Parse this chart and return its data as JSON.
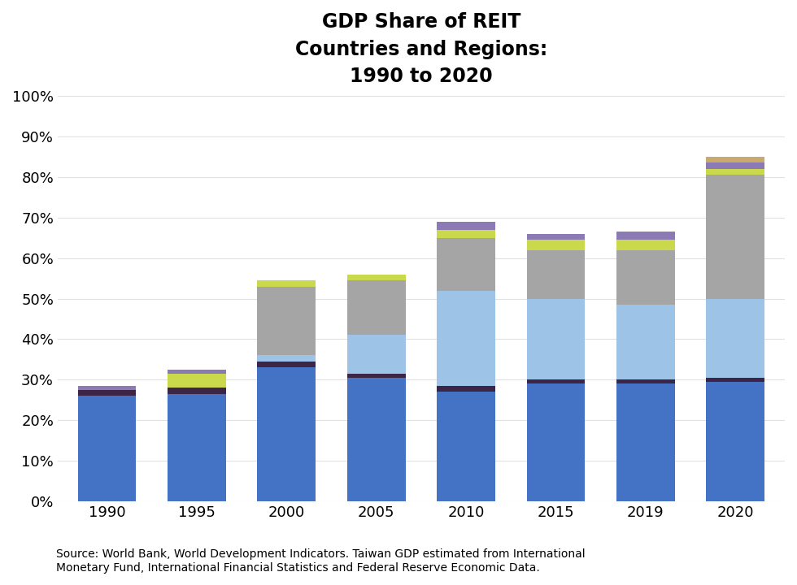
{
  "years": [
    "1990",
    "1995",
    "2000",
    "2005",
    "2010",
    "2015",
    "2019",
    "2020"
  ],
  "title": "GDP Share of REIT\nCountries and Regions:\n1990 to 2020",
  "yticks": [
    0,
    10,
    20,
    30,
    40,
    50,
    60,
    70,
    80,
    90,
    100
  ],
  "ytick_labels": [
    "0%",
    "10%",
    "20%",
    "30%",
    "40%",
    "50%",
    "60%",
    "70%",
    "80%",
    "90%",
    "100%"
  ],
  "source_text": "Source: World Bank, World Development Indicators. Taiwan GDP estimated from International\nMonetary Fund, International Financial Statistics and Federal Reserve Economic Data.",
  "segments": {
    "dark_blue": [
      26.0,
      26.5,
      33.0,
      30.5,
      27.0,
      29.0,
      29.0,
      29.5
    ],
    "dark_maroon": [
      1.5,
      1.5,
      1.5,
      1.0,
      1.5,
      1.0,
      1.0,
      1.0
    ],
    "light_blue": [
      0.0,
      0.0,
      1.5,
      9.5,
      23.5,
      20.0,
      18.5,
      19.5
    ],
    "gray": [
      0.0,
      0.0,
      17.0,
      13.5,
      13.0,
      12.0,
      13.5,
      30.5
    ],
    "yellow_green": [
      0.0,
      3.5,
      1.5,
      1.5,
      2.0,
      2.5,
      2.5,
      1.5
    ],
    "lavender": [
      1.0,
      1.0,
      0.0,
      0.0,
      2.0,
      1.5,
      2.0,
      1.5
    ],
    "tan": [
      0.0,
      0.0,
      0.0,
      0.0,
      0.0,
      0.0,
      0.0,
      1.5
    ]
  },
  "colors": {
    "dark_blue": "#4472C4",
    "dark_maroon": "#3D2645",
    "light_blue": "#9DC3E6",
    "gray": "#A5A5A5",
    "yellow_green": "#C9D94B",
    "lavender": "#8C7AB5",
    "tan": "#C8A96E"
  },
  "bar_width": 0.65,
  "ylim": [
    0,
    100
  ],
  "background_color": "#FFFFFF"
}
